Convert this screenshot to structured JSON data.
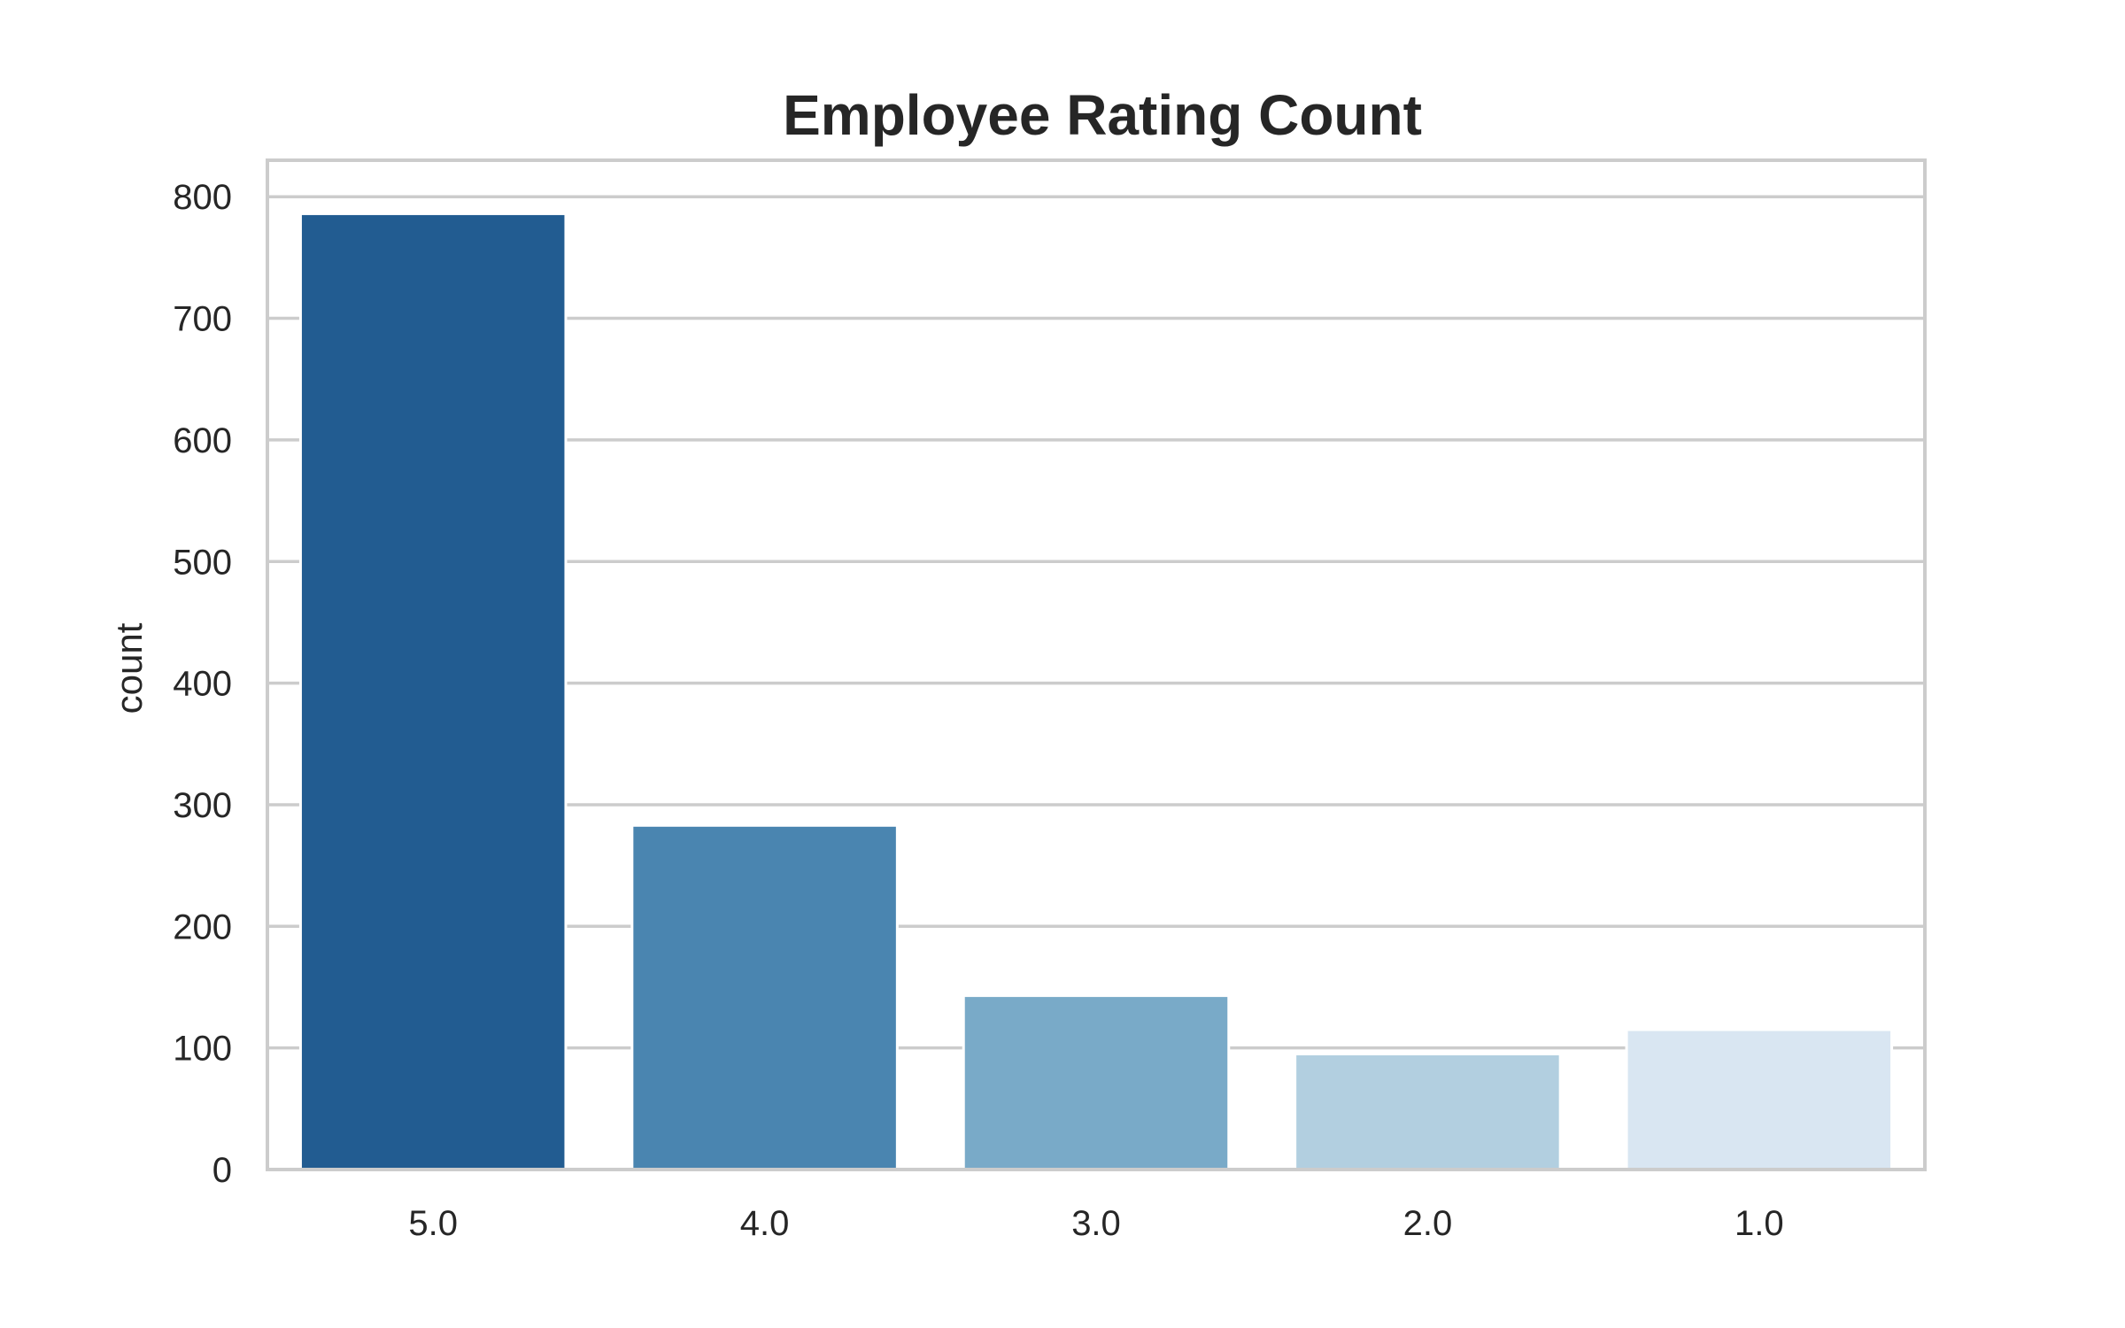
{
  "chart_data": {
    "type": "bar",
    "title": "Employee Rating Count",
    "xlabel": "",
    "ylabel": "count",
    "categories": [
      "5.0",
      "4.0",
      "3.0",
      "2.0",
      "1.0"
    ],
    "values": [
      786,
      283,
      143,
      95,
      115
    ],
    "colors": [
      "#225c91",
      "#4a85b0",
      "#79aac8",
      "#b2cfe0",
      "#d9e6f2"
    ],
    "ylim": [
      0,
      830
    ],
    "yticks": [
      0,
      100,
      200,
      300,
      400,
      500,
      600,
      700,
      800
    ],
    "grid": true,
    "frame_color": "#cccccc",
    "text_color": "#262626"
  }
}
